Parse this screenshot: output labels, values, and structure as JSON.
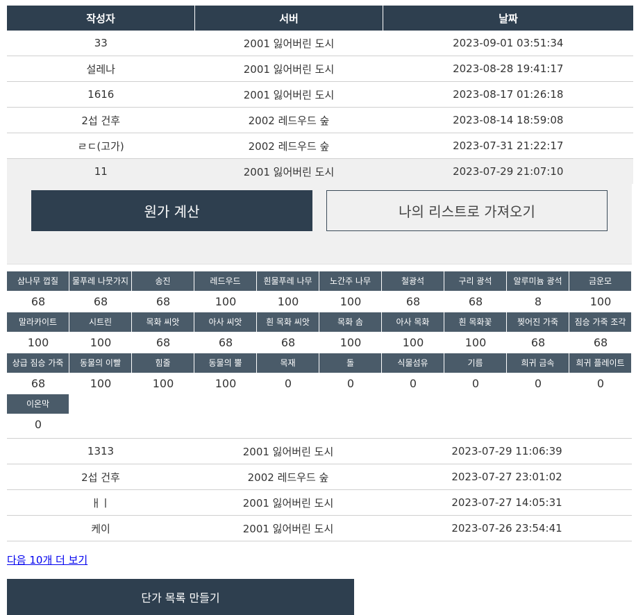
{
  "table": {
    "headers": [
      "작성자",
      "서버",
      "날짜"
    ],
    "rows_top": [
      {
        "author": "33",
        "server": "2001 잃어버린 도시",
        "date": "2023-09-01 03:51:34"
      },
      {
        "author": "설레나",
        "server": "2001 잃어버린 도시",
        "date": "2023-08-28 19:41:17"
      },
      {
        "author": "1616",
        "server": "2001 잃어버린 도시",
        "date": "2023-08-17 01:26:18"
      },
      {
        "author": "2섭 건후",
        "server": "2002 레드우드 숲",
        "date": "2023-08-14 18:59:08"
      },
      {
        "author": "ㄹㄷ(고가)",
        "server": "2002 레드우드 숲",
        "date": "2023-07-31 21:22:17"
      },
      {
        "author": "11",
        "server": "2001 잃어버린 도시",
        "date": "2023-07-29 21:07:10"
      }
    ],
    "rows_bottom": [
      {
        "author": "1313",
        "server": "2001 잃어버린 도시",
        "date": "2023-07-29 11:06:39"
      },
      {
        "author": "2섭 건후",
        "server": "2002 레드우드 숲",
        "date": "2023-07-27 23:01:02"
      },
      {
        "author": "ㅐㅣ",
        "server": "2001 잃어버린 도시",
        "date": "2023-07-27 14:05:31"
      },
      {
        "author": "케이",
        "server": "2001 잃어버린 도시",
        "date": "2023-07-26 23:54:41"
      }
    ]
  },
  "detail": {
    "calc_button": "원가 계산",
    "import_button": "나의 리스트로 가져오기",
    "materials": [
      {
        "name": "삼나무 껍질",
        "value": "68"
      },
      {
        "name": "물푸레 나뭇가지",
        "value": "68"
      },
      {
        "name": "송진",
        "value": "68"
      },
      {
        "name": "레드우드",
        "value": "100"
      },
      {
        "name": "흰물푸레 나무",
        "value": "100"
      },
      {
        "name": "노간주 나무",
        "value": "100"
      },
      {
        "name": "철광석",
        "value": "68"
      },
      {
        "name": "구리 광석",
        "value": "68"
      },
      {
        "name": "알루미늄 광석",
        "value": "8"
      },
      {
        "name": "금운모",
        "value": "100"
      },
      {
        "name": "말라카이트",
        "value": "100"
      },
      {
        "name": "시트린",
        "value": "100"
      },
      {
        "name": "목화 씨앗",
        "value": "68"
      },
      {
        "name": "아사 씨앗",
        "value": "68"
      },
      {
        "name": "흰 목화 씨앗",
        "value": "68"
      },
      {
        "name": "목화 솜",
        "value": "100"
      },
      {
        "name": "아사 목화",
        "value": "100"
      },
      {
        "name": "흰 목화꽃",
        "value": "100"
      },
      {
        "name": "찢어진 가죽",
        "value": "68"
      },
      {
        "name": "짐승 가죽 조각",
        "value": "68"
      },
      {
        "name": "상급 짐승 가죽",
        "value": "68"
      },
      {
        "name": "동물의 이빨",
        "value": "100"
      },
      {
        "name": "힘줄",
        "value": "100"
      },
      {
        "name": "동물의 뿔",
        "value": "100"
      },
      {
        "name": "목재",
        "value": "0"
      },
      {
        "name": "돌",
        "value": "0"
      },
      {
        "name": "식물섬유",
        "value": "0"
      },
      {
        "name": "기름",
        "value": "0"
      },
      {
        "name": "희귀 금속",
        "value": "0"
      },
      {
        "name": "희귀 플레이트",
        "value": "0"
      },
      {
        "name": "이온막",
        "value": "0"
      }
    ]
  },
  "footer": {
    "more_link": "다음 10개 더 보기",
    "make_button": "단가 목록 만들기"
  }
}
